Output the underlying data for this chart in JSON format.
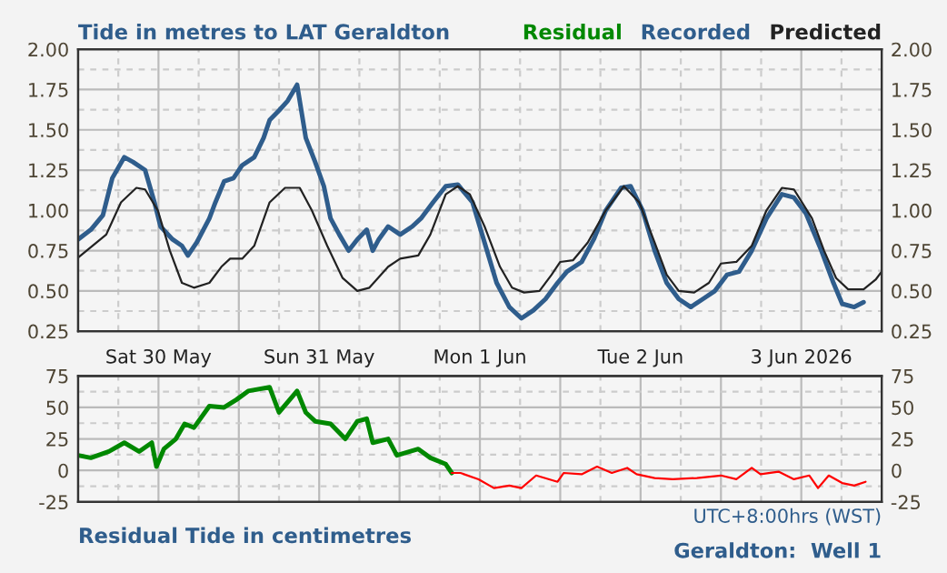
{
  "chart_data": [
    {
      "type": "line",
      "title": "Tide in metres to LAT Geraldton",
      "xlim": [
        "2026-05-30T00:00",
        "2026-06-04T00:00"
      ],
      "xticks": [
        {
          "value": "2026-05-30T12:00",
          "label": "Sat 30 May"
        },
        {
          "value": "2026-05-31T12:00",
          "label": "Sun 31 May"
        },
        {
          "value": "2026-06-01T12:00",
          "label": "Mon 1 Jun"
        },
        {
          "value": "2026-06-02T12:00",
          "label": "Tue 2 Jun"
        },
        {
          "value": "2026-06-03T12:00",
          "label": "3 Jun 2026"
        }
      ],
      "ylim": [
        0.25,
        2.0
      ],
      "yticks": [
        {
          "value": 0.25,
          "label": "0.25"
        },
        {
          "value": 0.5,
          "label": "0.50"
        },
        {
          "value": 0.75,
          "label": "0.75"
        },
        {
          "value": 1.0,
          "label": "1.00"
        },
        {
          "value": 1.25,
          "label": "1.25"
        },
        {
          "value": 1.5,
          "label": "1.50"
        },
        {
          "value": 1.75,
          "label": "1.75"
        },
        {
          "value": 2.0,
          "label": "2.00"
        }
      ],
      "y2lim": [
        0.25,
        2.0
      ],
      "y2ticks": [
        {
          "value": 0.25,
          "label": "0.25"
        },
        {
          "value": 0.5,
          "label": "0.50"
        },
        {
          "value": 0.75,
          "label": "0.75"
        },
        {
          "value": 1.0,
          "label": "1.00"
        },
        {
          "value": 1.25,
          "label": "1.25"
        },
        {
          "value": 1.5,
          "label": "1.50"
        },
        {
          "value": 1.75,
          "label": "1.75"
        },
        {
          "value": 2.0,
          "label": "2.00"
        }
      ],
      "grid": true,
      "legend": "top right",
      "marker": "none",
      "line_style": "solid",
      "series": [
        {
          "name": "Recorded",
          "color": "#2f5d8c",
          "x": [
            "2026-05-30T00:00",
            "2026-05-30T01:54",
            "2026-05-30T03:42",
            "2026-05-30T05:06",
            "2026-05-30T06:54",
            "2026-05-30T08:12",
            "2026-05-30T10:00",
            "2026-05-30T11:24",
            "2026-05-30T12:18",
            "2026-05-30T14:06",
            "2026-05-30T15:30",
            "2026-05-30T16:24",
            "2026-05-30T17:42",
            "2026-05-30T19:36",
            "2026-05-30T20:30",
            "2026-05-30T21:48",
            "2026-05-30T23:12",
            "2026-05-31T00:30",
            "2026-05-31T02:18",
            "2026-05-31T03:42",
            "2026-05-31T04:36",
            "2026-05-31T06:00",
            "2026-05-31T07:18",
            "2026-05-31T08:42",
            "2026-05-31T10:00",
            "2026-05-31T11:24",
            "2026-05-31T12:42",
            "2026-05-31T13:42",
            "2026-05-31T15:00",
            "2026-05-31T16:24",
            "2026-05-31T17:42",
            "2026-05-31T19:06",
            "2026-05-31T20:00",
            "2026-05-31T20:54",
            "2026-05-31T22:18",
            "2026-06-01T00:06",
            "2026-06-01T01:54",
            "2026-06-01T03:12",
            "2026-06-01T05:00",
            "2026-06-01T06:54",
            "2026-06-01T08:42",
            "2026-06-01T10:54",
            "2026-06-01T12:42",
            "2026-06-01T14:30",
            "2026-06-01T16:24",
            "2026-06-01T18:12",
            "2026-06-01T20:00",
            "2026-06-01T21:48",
            "2026-06-01T23:36",
            "2026-06-02T01:00",
            "2026-06-02T03:12",
            "2026-06-02T05:00",
            "2026-06-02T06:48",
            "2026-06-02T09:06",
            "2026-06-02T10:30",
            "2026-06-02T12:18",
            "2026-06-02T14:06",
            "2026-06-02T15:54",
            "2026-06-02T17:42",
            "2026-06-02T19:30",
            "2026-06-02T21:18",
            "2026-06-02T23:06",
            "2026-06-03T00:54",
            "2026-06-03T02:42",
            "2026-06-03T04:36",
            "2026-06-03T06:48",
            "2026-06-03T09:06",
            "2026-06-03T10:54",
            "2026-06-03T12:42",
            "2026-06-03T15:00",
            "2026-06-03T16:48",
            "2026-06-03T18:06",
            "2026-06-03T19:54",
            "2026-06-03T21:18"
          ],
          "values": [
            0.82,
            0.88,
            0.97,
            1.2,
            1.33,
            1.3,
            1.25,
            1.05,
            0.9,
            0.82,
            0.78,
            0.72,
            0.8,
            0.95,
            1.05,
            1.18,
            1.2,
            1.28,
            1.33,
            1.45,
            1.56,
            1.62,
            1.68,
            1.78,
            1.45,
            1.3,
            1.15,
            0.95,
            0.85,
            0.75,
            0.82,
            0.88,
            0.75,
            0.82,
            0.9,
            0.85,
            0.9,
            0.95,
            1.05,
            1.15,
            1.16,
            1.05,
            0.8,
            0.55,
            0.4,
            0.33,
            0.38,
            0.45,
            0.55,
            0.62,
            0.68,
            0.82,
            1.0,
            1.14,
            1.15,
            1.0,
            0.75,
            0.55,
            0.45,
            0.4,
            0.45,
            0.5,
            0.6,
            0.62,
            0.75,
            0.95,
            1.1,
            1.08,
            0.98,
            0.75,
            0.55,
            0.42,
            0.4,
            0.43
          ]
        },
        {
          "name": "Predicted",
          "color": "#222222",
          "x": [
            "2026-05-30T00:06",
            "2026-05-30T04:12",
            "2026-05-30T06:24",
            "2026-05-30T08:42",
            "2026-05-30T10:00",
            "2026-05-30T11:54",
            "2026-05-30T13:42",
            "2026-05-30T15:30",
            "2026-05-30T17:18",
            "2026-05-30T19:36",
            "2026-05-30T21:24",
            "2026-05-30T22:42",
            "2026-05-31T00:30",
            "2026-05-31T02:18",
            "2026-05-31T04:36",
            "2026-05-31T06:54",
            "2026-05-31T09:06",
            "2026-05-31T10:54",
            "2026-05-31T13:12",
            "2026-05-31T15:30",
            "2026-05-31T17:42",
            "2026-05-31T19:30",
            "2026-05-31T22:18",
            "2026-06-01T00:06",
            "2026-06-01T02:48",
            "2026-06-01T04:36",
            "2026-06-01T06:54",
            "2026-06-01T08:42",
            "2026-06-01T10:30",
            "2026-06-01T12:42",
            "2026-06-01T15:00",
            "2026-06-01T16:48",
            "2026-06-01T18:36",
            "2026-06-01T20:54",
            "2026-06-01T22:42",
            "2026-06-02T00:00",
            "2026-06-02T01:54",
            "2026-06-02T04:06",
            "2026-06-02T06:48",
            "2026-06-02T09:30",
            "2026-06-02T11:48",
            "2026-06-02T14:06",
            "2026-06-02T15:54",
            "2026-06-02T17:42",
            "2026-06-02T20:00",
            "2026-06-02T22:12",
            "2026-06-03T00:00",
            "2026-06-03T02:18",
            "2026-06-03T04:36",
            "2026-06-03T06:48",
            "2026-06-03T09:06",
            "2026-06-03T10:54",
            "2026-06-03T13:36",
            "2026-06-03T15:24",
            "2026-06-03T17:12",
            "2026-06-03T19:00",
            "2026-06-03T21:18",
            "2026-06-03T23:06",
            "2026-06-04T00:00"
          ],
          "values": [
            0.71,
            0.85,
            1.05,
            1.14,
            1.13,
            1.0,
            0.75,
            0.55,
            0.52,
            0.55,
            0.65,
            0.7,
            0.7,
            0.78,
            1.05,
            1.14,
            1.14,
            1.0,
            0.78,
            0.58,
            0.5,
            0.52,
            0.65,
            0.7,
            0.72,
            0.85,
            1.1,
            1.15,
            1.1,
            0.9,
            0.65,
            0.52,
            0.49,
            0.5,
            0.6,
            0.68,
            0.69,
            0.8,
            1.0,
            1.15,
            1.05,
            0.8,
            0.6,
            0.5,
            0.49,
            0.55,
            0.67,
            0.68,
            0.78,
            1.0,
            1.14,
            1.13,
            0.95,
            0.75,
            0.58,
            0.51,
            0.51,
            0.57,
            0.62
          ]
        }
      ]
    },
    {
      "type": "line",
      "title": "Residual Tide in centimetres",
      "annotations": [
        "UTC+8:00hrs (WST)",
        "Geraldton:  Well 1"
      ],
      "xlim": [
        "2026-05-30T00:00",
        "2026-06-04T00:00"
      ],
      "ylim": [
        -25,
        75
      ],
      "yticks": [
        -25,
        0,
        25,
        50,
        75
      ],
      "y2lim": [
        -25,
        75
      ],
      "y2ticks": [
        -25,
        0,
        25,
        50,
        75
      ],
      "tick_labels": "y",
      "grid": true,
      "marker": "none",
      "line_style": "solid",
      "series": [
        {
          "name": "Residual",
          "color": "#008800",
          "x": [
            "2026-05-30T00:00",
            "2026-05-30T01:54",
            "2026-05-30T04:36",
            "2026-05-30T06:54",
            "2026-05-30T09:06",
            "2026-05-30T11:00",
            "2026-05-30T11:42",
            "2026-05-30T12:48",
            "2026-05-30T14:36",
            "2026-05-30T15:54",
            "2026-05-30T17:18",
            "2026-05-30T19:36",
            "2026-05-30T21:48",
            "2026-05-30T23:36",
            "2026-05-31T01:24",
            "2026-05-31T04:36",
            "2026-05-31T06:00",
            "2026-05-31T08:42",
            "2026-05-31T10:00",
            "2026-05-31T11:24",
            "2026-05-31T13:42",
            "2026-05-31T15:54",
            "2026-05-31T17:42",
            "2026-05-31T19:06",
            "2026-05-31T20:00",
            "2026-05-31T22:18",
            "2026-05-31T23:36",
            "2026-06-01T02:48",
            "2026-06-01T04:36",
            "2026-06-01T06:54",
            "2026-06-01T07:48"
          ],
          "values": [
            12,
            10,
            15,
            22,
            15,
            22,
            3,
            17,
            25,
            37,
            34,
            51,
            50,
            56,
            63,
            66,
            46,
            63,
            46,
            39,
            37,
            25,
            39,
            41,
            22,
            25,
            12,
            17,
            10,
            5,
            -2
          ]
        },
        {
          "color": "#ff0000",
          "x": [
            "2026-06-01T07:48",
            "2026-06-01T09:06",
            "2026-06-01T11:48",
            "2026-06-01T14:06",
            "2026-06-01T16:24",
            "2026-06-01T18:12",
            "2026-06-01T20:24",
            "2026-06-01T23:36",
            "2026-06-02T00:30",
            "2026-06-02T03:12",
            "2026-06-02T05:30",
            "2026-06-02T07:42",
            "2026-06-02T10:00",
            "2026-06-02T11:24",
            "2026-06-02T14:06",
            "2026-06-02T16:48",
            "2026-06-02T20:24",
            "2026-06-03T00:00",
            "2026-06-03T02:18",
            "2026-06-03T04:36",
            "2026-06-03T05:54",
            "2026-06-03T08:36",
            "2026-06-03T10:54",
            "2026-06-03T13:12",
            "2026-06-03T14:30",
            "2026-06-03T16:06",
            "2026-06-03T18:06",
            "2026-06-03T19:54",
            "2026-06-03T21:36"
          ],
          "values": [
            -2,
            -2,
            -7,
            -14,
            -12,
            -14,
            -4,
            -9,
            -2,
            -3,
            3,
            -2,
            2,
            -3,
            -6,
            -7,
            -6,
            -4,
            -7,
            2,
            -3,
            -1,
            -7,
            -4,
            -14,
            -4,
            -10,
            -12,
            -9
          ]
        }
      ]
    }
  ]
}
